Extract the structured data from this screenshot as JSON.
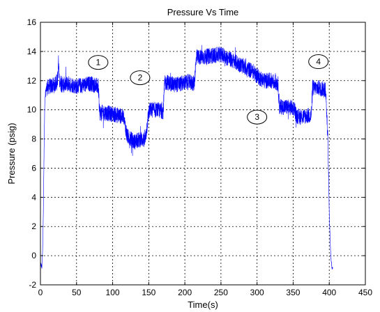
{
  "chart_data": {
    "type": "line",
    "title": "Pressure Vs Time",
    "xlabel": "Time(s)",
    "ylabel": "Pressure (psig)",
    "xlim": [
      0,
      450
    ],
    "ylim": [
      -2,
      16
    ],
    "xticks": [
      0,
      50,
      100,
      150,
      200,
      250,
      300,
      350,
      400,
      450
    ],
    "yticks": [
      -2,
      0,
      2,
      4,
      6,
      8,
      10,
      12,
      14,
      16
    ],
    "grid": true,
    "series_color": "#0000ff",
    "series": [
      {
        "x": [
          0,
          2,
          3,
          4,
          5,
          6,
          7,
          9,
          12,
          20,
          24,
          25,
          26,
          30,
          40,
          50,
          60,
          70,
          75,
          80,
          82,
          90,
          100,
          110,
          115,
          120,
          125,
          130,
          135,
          140,
          145,
          150,
          152,
          160,
          170,
          172,
          175,
          185,
          195,
          205,
          213,
          216,
          225,
          235,
          250,
          265,
          280,
          295,
          300,
          310,
          320,
          329,
          331,
          340,
          352,
          354,
          360,
          370,
          375,
          377,
          385,
          395,
          398,
          400,
          402,
          404,
          405
        ],
        "y": [
          -0.5,
          -0.8,
          0.3,
          3,
          7,
          10.5,
          11.3,
          11.5,
          11.6,
          11.7,
          12.2,
          13.5,
          12.0,
          11.7,
          11.8,
          11.6,
          11.7,
          11.8,
          11.7,
          11.6,
          9.8,
          9.8,
          9.7,
          9.6,
          9.5,
          8.2,
          8.0,
          7.8,
          7.9,
          8.0,
          7.9,
          9.8,
          10.0,
          10.0,
          9.9,
          11.8,
          11.9,
          11.7,
          11.8,
          11.9,
          11.8,
          13.6,
          13.6,
          13.7,
          13.8,
          13.4,
          13.0,
          12.6,
          12.3,
          12.0,
          12.0,
          11.8,
          10.2,
          10.2,
          10.1,
          9.6,
          9.5,
          9.6,
          9.6,
          11.5,
          11.5,
          11.4,
          8,
          3,
          0,
          -0.9,
          -0.7
        ]
      }
    ],
    "annotations": [
      {
        "label": "1",
        "x": 80,
        "y": 13.25
      },
      {
        "label": "2",
        "x": 138,
        "y": 12.2
      },
      {
        "label": "3",
        "x": 300,
        "y": 9.5
      },
      {
        "label": "4",
        "x": 385,
        "y": 13.3
      }
    ]
  }
}
